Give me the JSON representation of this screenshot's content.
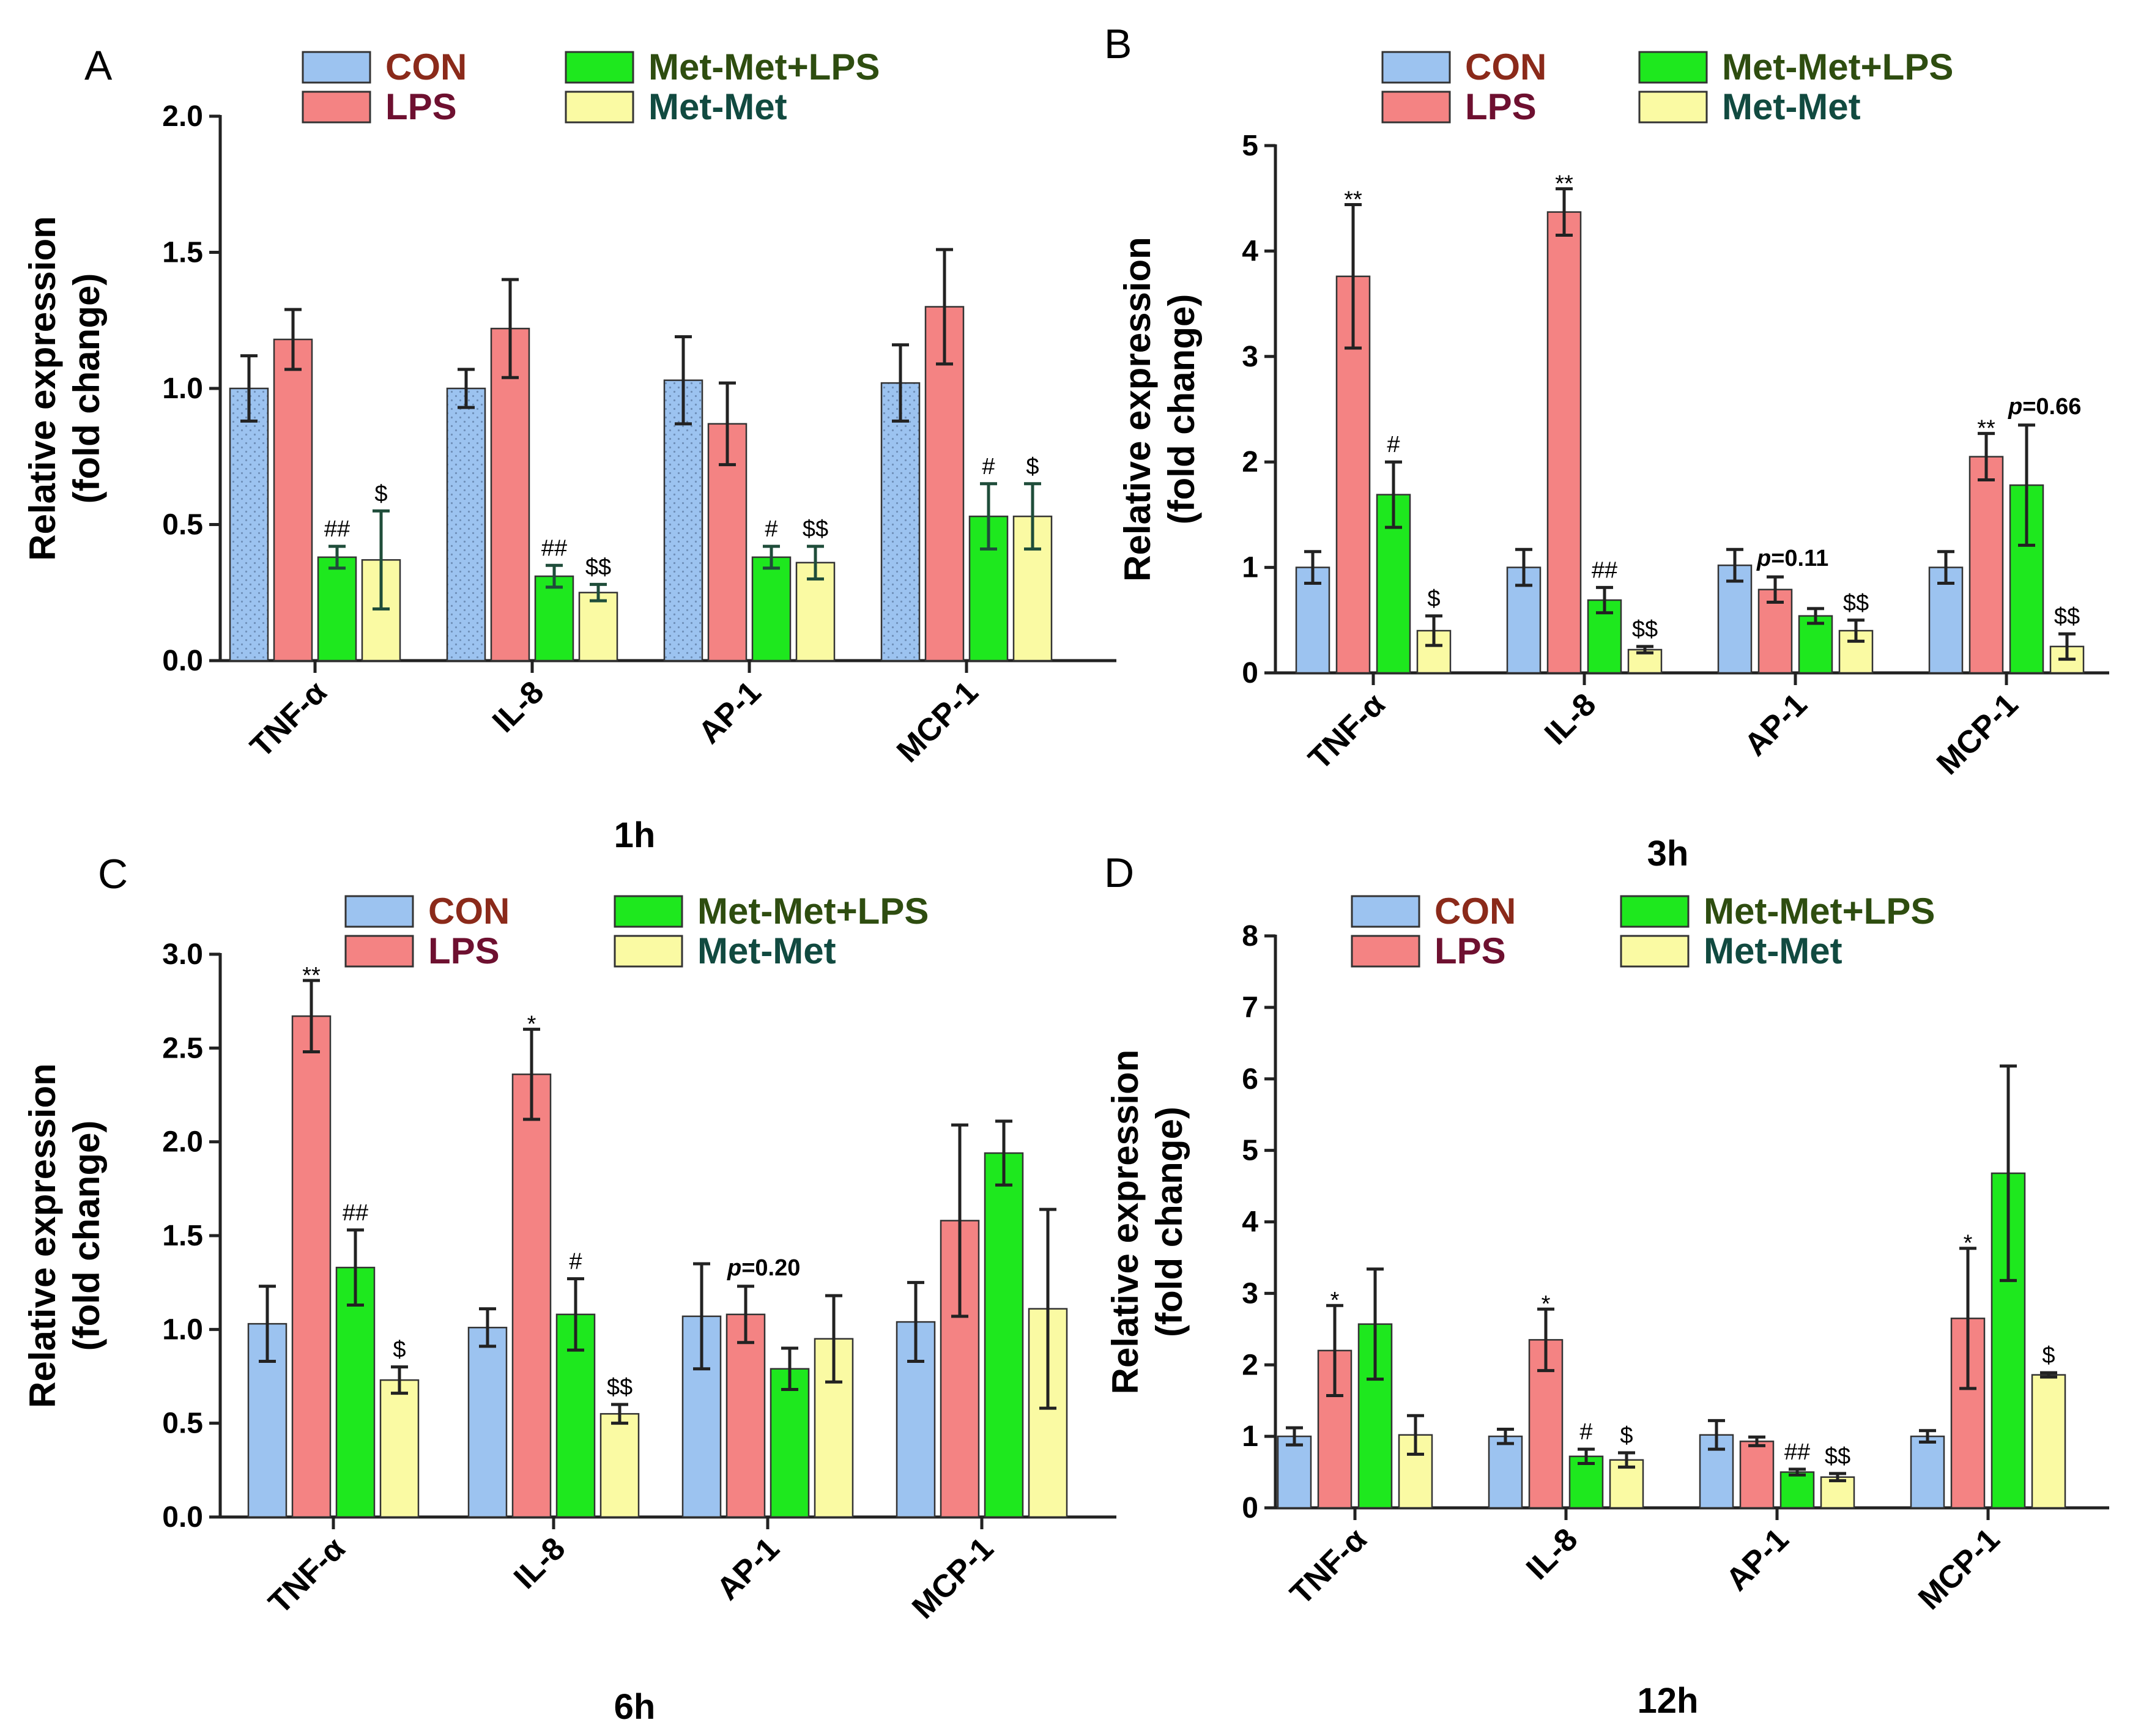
{
  "colors": {
    "CON": "#9cc3f0",
    "LPS": "#f48383",
    "MetMetLPS": "#1ee81e",
    "MetMet": "#fafaa3",
    "axis": "#222222",
    "err": "#222222",
    "err_dark": "#1f4d3a",
    "dot": "#6f8fb8",
    "legend_CON_text": "#8b2a1a",
    "legend_LPS_text": "#6e1030",
    "legend_MetMetLPS_text": "#2e4d10",
    "legend_MetMet_text": "#114a40"
  },
  "chart_data": [
    {
      "panel": "A",
      "type": "bar",
      "title": "",
      "xlabel": "1h",
      "ylabel": [
        "Relative expression",
        "(fold change)"
      ],
      "categories": [
        "TNF-α",
        "IL-8",
        "AP-1",
        "MCP-1"
      ],
      "ylim": [
        0,
        2.0
      ],
      "yticks": [
        "0.0",
        "0.5",
        "1.0",
        "1.5",
        "2.0"
      ],
      "ytick_values": [
        0,
        0.5,
        1.0,
        1.5,
        2.0
      ],
      "legend": [
        "CON",
        "LPS",
        "Met-Met+LPS",
        "Met-Met"
      ],
      "series": [
        {
          "name": "CON",
          "values": [
            1.0,
            1.0,
            1.03,
            1.02
          ],
          "errors": [
            0.12,
            0.07,
            0.16,
            0.14
          ]
        },
        {
          "name": "LPS",
          "values": [
            1.18,
            1.22,
            0.87,
            1.3
          ],
          "errors": [
            0.11,
            0.18,
            0.15,
            0.21
          ]
        },
        {
          "name": "Met-Met+LPS",
          "values": [
            0.38,
            0.31,
            0.38,
            0.53
          ],
          "errors": [
            0.04,
            0.04,
            0.04,
            0.12
          ]
        },
        {
          "name": "Met-Met",
          "values": [
            0.37,
            0.25,
            0.36,
            0.53
          ],
          "errors": [
            0.18,
            0.03,
            0.06,
            0.12
          ]
        }
      ],
      "annotations": [
        {
          "category": 0,
          "series": 2,
          "text": "##"
        },
        {
          "category": 0,
          "series": 3,
          "text": "$"
        },
        {
          "category": 1,
          "series": 2,
          "text": "##"
        },
        {
          "category": 1,
          "series": 3,
          "text": "$$"
        },
        {
          "category": 2,
          "series": 2,
          "text": "#"
        },
        {
          "category": 2,
          "series": 3,
          "text": "$$"
        },
        {
          "category": 3,
          "series": 2,
          "text": "#"
        },
        {
          "category": 3,
          "series": 3,
          "text": "$"
        }
      ],
      "pvalues": []
    },
    {
      "panel": "B",
      "type": "bar",
      "title": "",
      "xlabel": "3h",
      "ylabel": [
        "Relative expression",
        "(fold change)"
      ],
      "categories": [
        "TNF-α",
        "IL-8",
        "AP-1",
        "MCP-1"
      ],
      "ylim": [
        0,
        5
      ],
      "yticks": [
        "0",
        "1",
        "2",
        "3",
        "4",
        "5"
      ],
      "ytick_values": [
        0,
        1,
        2,
        3,
        4,
        5
      ],
      "legend": [
        "CON",
        "LPS",
        "Met-Met+LPS",
        "Met-Met"
      ],
      "series": [
        {
          "name": "CON",
          "values": [
            1.0,
            1.0,
            1.02,
            1.0
          ],
          "errors": [
            0.15,
            0.17,
            0.15,
            0.15
          ]
        },
        {
          "name": "LPS",
          "values": [
            3.76,
            4.37,
            0.79,
            2.05
          ],
          "errors": [
            0.68,
            0.22,
            0.12,
            0.22
          ]
        },
        {
          "name": "Met-Met+LPS",
          "values": [
            1.69,
            0.69,
            0.54,
            1.78
          ],
          "errors": [
            0.31,
            0.12,
            0.07,
            0.57
          ]
        },
        {
          "name": "Met-Met",
          "values": [
            0.4,
            0.22,
            0.4,
            0.25
          ],
          "errors": [
            0.14,
            0.03,
            0.1,
            0.12
          ]
        }
      ],
      "annotations": [
        {
          "category": 0,
          "series": 1,
          "text": "**"
        },
        {
          "category": 0,
          "series": 2,
          "text": "#"
        },
        {
          "category": 0,
          "series": 3,
          "text": "$"
        },
        {
          "category": 1,
          "series": 1,
          "text": "**"
        },
        {
          "category": 1,
          "series": 2,
          "text": "##"
        },
        {
          "category": 1,
          "series": 3,
          "text": "$$"
        },
        {
          "category": 2,
          "series": 3,
          "text": "$$"
        },
        {
          "category": 3,
          "series": 1,
          "text": "**"
        },
        {
          "category": 3,
          "series": 3,
          "text": "$$"
        }
      ],
      "pvalues": [
        {
          "category": 2,
          "series": 1,
          "italic": "p",
          "text": "=0.11"
        },
        {
          "category": 3,
          "series": 2,
          "italic": "p",
          "text": "=0.66"
        }
      ]
    },
    {
      "panel": "C",
      "type": "bar",
      "title": "",
      "xlabel": "6h",
      "ylabel": [
        "Relative expression",
        "(fold change)"
      ],
      "categories": [
        "TNF-α",
        "IL-8",
        "AP-1",
        "MCP-1"
      ],
      "ylim": [
        0,
        3.0
      ],
      "yticks": [
        "0.0",
        "0.5",
        "1.0",
        "1.5",
        "2.0",
        "2.5",
        "3.0"
      ],
      "ytick_values": [
        0,
        0.5,
        1.0,
        1.5,
        2.0,
        2.5,
        3.0
      ],
      "legend": [
        "CON",
        "LPS",
        "Met-Met+LPS",
        "Met-Met"
      ],
      "series": [
        {
          "name": "CON",
          "values": [
            1.03,
            1.01,
            1.07,
            1.04
          ],
          "errors": [
            0.2,
            0.1,
            0.28,
            0.21
          ]
        },
        {
          "name": "LPS",
          "values": [
            2.67,
            2.36,
            1.08,
            1.58
          ],
          "errors": [
            0.19,
            0.24,
            0.15,
            0.51
          ]
        },
        {
          "name": "Met-Met+LPS",
          "values": [
            1.33,
            1.08,
            0.79,
            1.94
          ],
          "errors": [
            0.2,
            0.19,
            0.11,
            0.17
          ]
        },
        {
          "name": "Met-Met",
          "values": [
            0.73,
            0.55,
            0.95,
            1.11
          ],
          "errors": [
            0.07,
            0.05,
            0.23,
            0.53
          ]
        }
      ],
      "annotations": [
        {
          "category": 0,
          "series": 1,
          "text": "**"
        },
        {
          "category": 0,
          "series": 2,
          "text": "##"
        },
        {
          "category": 0,
          "series": 3,
          "text": "$"
        },
        {
          "category": 1,
          "series": 1,
          "text": "*"
        },
        {
          "category": 1,
          "series": 2,
          "text": "#"
        },
        {
          "category": 1,
          "series": 3,
          "text": "$$"
        }
      ],
      "pvalues": [
        {
          "category": 2,
          "series": 1,
          "italic": "p",
          "text": "=0.20"
        }
      ]
    },
    {
      "panel": "D",
      "type": "bar",
      "title": "",
      "xlabel": "12h",
      "ylabel": [
        "Relative expression",
        "(fold change)"
      ],
      "categories": [
        "TNF-α",
        "IL-8",
        "AP-1",
        "MCP-1"
      ],
      "ylim": [
        0,
        8
      ],
      "yticks": [
        "0",
        "1",
        "2",
        "3",
        "4",
        "5",
        "6",
        "7",
        "8"
      ],
      "ytick_values": [
        0,
        1,
        2,
        3,
        4,
        5,
        6,
        7,
        8
      ],
      "legend": [
        "CON",
        "LPS",
        "Met-Met+LPS",
        "Met-Met"
      ],
      "series": [
        {
          "name": "CON",
          "values": [
            1.0,
            1.0,
            1.02,
            1.0
          ],
          "errors": [
            0.12,
            0.1,
            0.2,
            0.08
          ]
        },
        {
          "name": "LPS",
          "values": [
            2.2,
            2.35,
            0.93,
            2.65
          ],
          "errors": [
            0.63,
            0.43,
            0.06,
            0.98
          ]
        },
        {
          "name": "Met-Met+LPS",
          "values": [
            2.57,
            0.72,
            0.5,
            4.68
          ],
          "errors": [
            0.77,
            0.1,
            0.04,
            1.5
          ]
        },
        {
          "name": "Met-Met",
          "values": [
            1.02,
            0.67,
            0.43,
            1.86
          ],
          "errors": [
            0.27,
            0.1,
            0.05,
            0.03
          ]
        }
      ],
      "annotations": [
        {
          "category": 0,
          "series": 1,
          "text": "*"
        },
        {
          "category": 1,
          "series": 1,
          "text": "*"
        },
        {
          "category": 1,
          "series": 2,
          "text": "#"
        },
        {
          "category": 1,
          "series": 3,
          "text": "$"
        },
        {
          "category": 2,
          "series": 2,
          "text": "##"
        },
        {
          "category": 2,
          "series": 3,
          "text": "$$"
        },
        {
          "category": 3,
          "series": 1,
          "text": "*"
        },
        {
          "category": 3,
          "series": 3,
          "text": "$"
        }
      ],
      "pvalues": []
    }
  ]
}
